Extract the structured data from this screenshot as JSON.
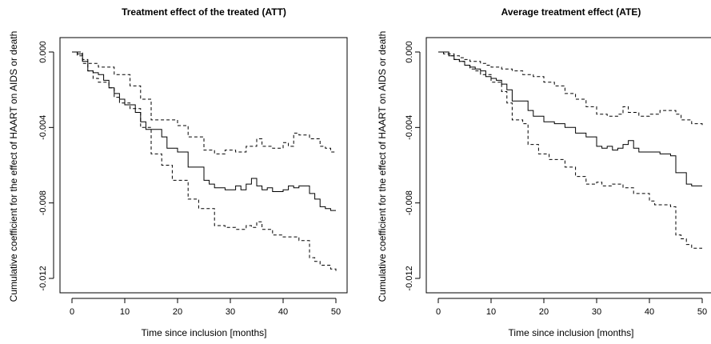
{
  "chart_data": [
    {
      "type": "line",
      "step": true,
      "title": "Treatment effect of the treated (ATT)",
      "xlabel": "Time since inclusion [months]",
      "ylabel": "Cumulative coefficient for the effect of HAART on AIDS or death",
      "xlim": [
        0,
        50
      ],
      "ylim": [
        -0.0127,
        0.0002
      ],
      "xticks": [
        0,
        10,
        20,
        30,
        40,
        50
      ],
      "xtick_labels": [
        "0",
        "10",
        "20",
        "30",
        "40",
        "50"
      ],
      "yticks": [
        0.0,
        -0.004,
        -0.008,
        -0.012
      ],
      "ytick_labels": [
        "0.000",
        "-0.004",
        "-0.008",
        "-0.012"
      ],
      "grid": false,
      "series": [
        {
          "style": "solid",
          "x": [
            0,
            1,
            2,
            3,
            4,
            5,
            6,
            7,
            8,
            9,
            10,
            12,
            13,
            14,
            15,
            17,
            18,
            20,
            22,
            25,
            26,
            27,
            29,
            31,
            32,
            33,
            34,
            35,
            36,
            37,
            38,
            40,
            41,
            42,
            43,
            45,
            46,
            47,
            48,
            49,
            50
          ],
          "y": [
            0.0,
            -0.0001,
            -0.0005,
            -0.001,
            -0.0011,
            -0.0012,
            -0.0015,
            -0.0019,
            -0.0022,
            -0.0025,
            -0.0028,
            -0.0032,
            -0.0037,
            -0.0041,
            -0.0041,
            -0.0045,
            -0.0051,
            -0.0053,
            -0.0061,
            -0.0068,
            -0.007,
            -0.0072,
            -0.0073,
            -0.0071,
            -0.0073,
            -0.007,
            -0.0067,
            -0.0071,
            -0.0073,
            -0.0072,
            -0.0074,
            -0.0073,
            -0.0071,
            -0.0072,
            -0.0071,
            -0.0075,
            -0.0078,
            -0.0082,
            -0.0083,
            -0.0084,
            -0.0084
          ]
        },
        {
          "style": "dashed",
          "x": [
            0,
            1,
            2,
            3,
            5,
            8,
            11,
            13,
            15,
            20,
            22,
            25,
            27,
            29,
            31,
            33,
            35,
            36,
            38,
            40,
            41,
            42,
            43,
            45,
            47,
            48,
            49,
            50
          ],
          "y": [
            0.0,
            0.0,
            -0.0004,
            -0.0006,
            -0.0008,
            -0.0012,
            -0.0018,
            -0.0025,
            -0.0036,
            -0.0039,
            -0.0045,
            -0.0052,
            -0.0054,
            -0.0052,
            -0.0053,
            -0.005,
            -0.0046,
            -0.005,
            -0.0051,
            -0.0048,
            -0.005,
            -0.0043,
            -0.0044,
            -0.0046,
            -0.005,
            -0.0051,
            -0.0053,
            -0.0053
          ]
        },
        {
          "style": "dashed",
          "x": [
            0,
            1,
            2,
            3,
            4,
            5,
            7,
            8,
            9,
            11,
            13,
            15,
            17,
            19,
            22,
            24,
            27,
            29,
            31,
            33,
            34,
            35,
            36,
            38,
            40,
            41,
            43,
            45,
            46,
            47,
            49,
            50
          ],
          "y": [
            0.0,
            -0.0002,
            -0.0006,
            -0.001,
            -0.0014,
            -0.0016,
            -0.0019,
            -0.0024,
            -0.0027,
            -0.003,
            -0.004,
            -0.0054,
            -0.006,
            -0.0068,
            -0.0078,
            -0.0083,
            -0.0092,
            -0.0093,
            -0.0094,
            -0.0092,
            -0.0093,
            -0.009,
            -0.0094,
            -0.0097,
            -0.0098,
            -0.0098,
            -0.01,
            -0.0109,
            -0.0111,
            -0.0113,
            -0.0115,
            -0.0117
          ]
        }
      ]
    },
    {
      "type": "line",
      "step": true,
      "title": "Average treatment effect (ATE)",
      "xlabel": "Time since inclusion [months]",
      "ylabel": "Cumulative coefficient for the effect of HAART on AIDS or death",
      "xlim": [
        0,
        50
      ],
      "ylim": [
        -0.0127,
        0.0002
      ],
      "xticks": [
        0,
        10,
        20,
        30,
        40,
        50
      ],
      "xtick_labels": [
        "0",
        "10",
        "20",
        "30",
        "40",
        "50"
      ],
      "yticks": [
        0.0,
        -0.004,
        -0.008,
        -0.012
      ],
      "ytick_labels": [
        "0.000",
        "-0.004",
        "-0.008",
        "-0.012"
      ],
      "grid": false,
      "series": [
        {
          "style": "solid",
          "x": [
            0,
            2,
            3,
            4,
            5,
            6,
            7,
            8,
            9,
            10,
            11,
            12,
            13,
            14,
            16,
            17,
            18,
            20,
            22,
            24,
            26,
            28,
            30,
            31,
            32,
            33,
            34,
            35,
            36,
            37,
            38,
            39,
            40,
            42,
            43,
            44,
            45,
            47,
            48,
            50
          ],
          "y": [
            0.0,
            -0.0002,
            -0.0004,
            -0.0005,
            -0.0007,
            -0.0008,
            -0.0009,
            -0.001,
            -0.0013,
            -0.0014,
            -0.0015,
            -0.0017,
            -0.002,
            -0.0026,
            -0.0026,
            -0.0031,
            -0.0034,
            -0.0037,
            -0.0038,
            -0.004,
            -0.0043,
            -0.0045,
            -0.005,
            -0.0051,
            -0.005,
            -0.0052,
            -0.0051,
            -0.0049,
            -0.0047,
            -0.0051,
            -0.0053,
            -0.0053,
            -0.0053,
            -0.0054,
            -0.0054,
            -0.0055,
            -0.0064,
            -0.007,
            -0.0071,
            -0.0071
          ]
        },
        {
          "style": "dashed",
          "x": [
            0,
            1,
            2,
            3,
            4,
            5,
            6,
            8,
            9,
            10,
            12,
            14,
            16,
            18,
            20,
            22,
            24,
            26,
            28,
            30,
            32,
            34,
            35,
            36,
            38,
            40,
            42,
            44,
            45,
            46,
            48,
            50
          ],
          "y": [
            0.0,
            0.0,
            -0.0001,
            -0.0002,
            -0.0003,
            -0.0004,
            -0.0005,
            -0.0006,
            -0.0007,
            -0.0008,
            -0.0009,
            -0.001,
            -0.0012,
            -0.0013,
            -0.0016,
            -0.0018,
            -0.0022,
            -0.0025,
            -0.0029,
            -0.0033,
            -0.0034,
            -0.0033,
            -0.0029,
            -0.0032,
            -0.0034,
            -0.0033,
            -0.0031,
            -0.0031,
            -0.0033,
            -0.0036,
            -0.0038,
            -0.0039
          ]
        },
        {
          "style": "dashed",
          "x": [
            0,
            1,
            2,
            3,
            4,
            5,
            6,
            7,
            8,
            10,
            12,
            13,
            14,
            16,
            17,
            19,
            21,
            24,
            26,
            28,
            30,
            31,
            33,
            35,
            37,
            40,
            41,
            44,
            45,
            46,
            47,
            48,
            50
          ],
          "y": [
            0.0,
            -0.0001,
            -0.0002,
            -0.0004,
            -0.0005,
            -0.0007,
            -0.0009,
            -0.001,
            -0.0012,
            -0.0016,
            -0.0021,
            -0.0027,
            -0.0036,
            -0.0038,
            -0.0049,
            -0.0054,
            -0.0057,
            -0.0061,
            -0.0066,
            -0.007,
            -0.0069,
            -0.0071,
            -0.007,
            -0.0072,
            -0.0075,
            -0.0079,
            -0.0081,
            -0.0082,
            -0.0097,
            -0.0099,
            -0.0102,
            -0.0104,
            -0.0104
          ]
        }
      ]
    }
  ]
}
